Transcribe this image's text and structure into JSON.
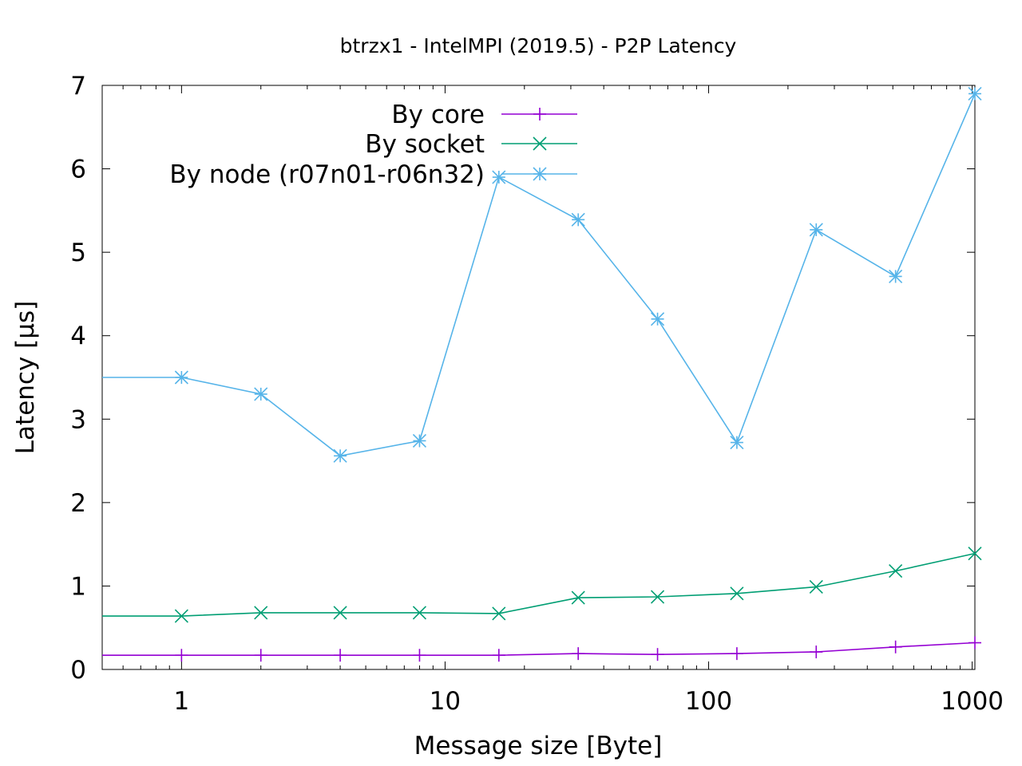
{
  "chart_data": {
    "type": "line",
    "title": "btrzx1 - IntelMPI (2019.5) - P2P Latency",
    "xlabel": "Message size [Byte]",
    "ylabel": "Latency [µs]",
    "x_scale": "log",
    "xlim": [
      0.5,
      1024
    ],
    "ylim": [
      0,
      7
    ],
    "x_ticks": [
      1,
      10,
      100,
      1000
    ],
    "x_tick_labels": [
      "1",
      "10",
      "100",
      "1000"
    ],
    "y_ticks": [
      0,
      1,
      2,
      3,
      4,
      5,
      6,
      7
    ],
    "y_tick_labels": [
      "0",
      "1",
      "2",
      "3",
      "4",
      "5",
      "6",
      "7"
    ],
    "grid": false,
    "legend_position": "top-center",
    "x": [
      0.5,
      1,
      2,
      4,
      8,
      16,
      32,
      64,
      128,
      256,
      512,
      1024
    ],
    "series": [
      {
        "name": "By core",
        "color": "#9400d3",
        "marker": "plus",
        "values": [
          0.17,
          0.17,
          0.17,
          0.17,
          0.17,
          0.17,
          0.19,
          0.18,
          0.19,
          0.21,
          0.27,
          0.32
        ]
      },
      {
        "name": "By socket",
        "color": "#009e73",
        "marker": "cross",
        "values": [
          0.64,
          0.64,
          0.68,
          0.68,
          0.68,
          0.67,
          0.86,
          0.87,
          0.91,
          0.99,
          1.18,
          1.39
        ]
      },
      {
        "name": "By node (r07n01-r06n32)",
        "color": "#56b4e9",
        "marker": "star",
        "values": [
          3.5,
          3.5,
          3.3,
          2.56,
          2.74,
          5.9,
          5.39,
          4.2,
          2.72,
          5.27,
          4.71,
          6.9
        ]
      }
    ]
  }
}
